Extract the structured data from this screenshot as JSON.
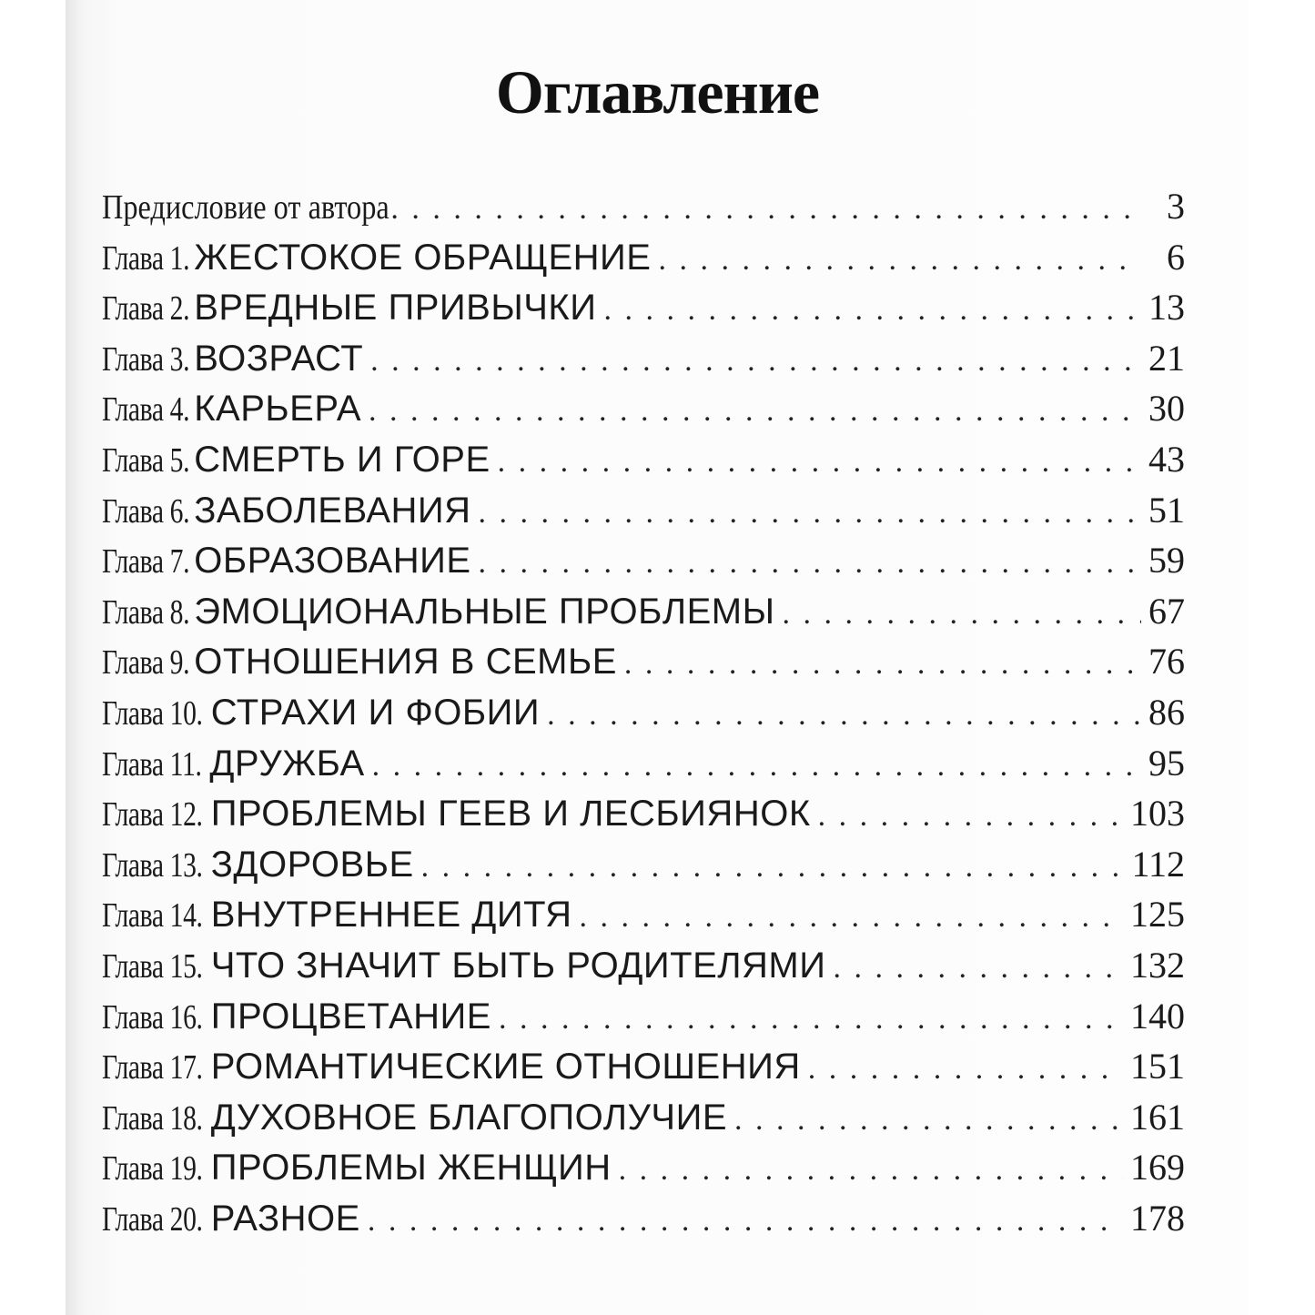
{
  "title": "Оглавление",
  "entries": [
    {
      "prefix": "Предисловие от автора",
      "name": "",
      "page": "3"
    },
    {
      "prefix": "Глава 1.",
      "name": "ЖЕСТОКОЕ ОБРАЩЕНИЕ",
      "page": "6"
    },
    {
      "prefix": "Глава 2.",
      "name": "ВРЕДНЫЕ ПРИВЫЧКИ",
      "page": "13"
    },
    {
      "prefix": "Глава 3.",
      "name": "ВОЗРАСТ",
      "page": "21"
    },
    {
      "prefix": "Глава 4.",
      "name": "КАРЬЕРА",
      "page": "30"
    },
    {
      "prefix": "Глава 5.",
      "name": "СМЕРТЬ И ГОРЕ",
      "page": "43"
    },
    {
      "prefix": "Глава 6.",
      "name": "ЗАБОЛЕВАНИЯ",
      "page": "51"
    },
    {
      "prefix": "Глава 7.",
      "name": "ОБРАЗОВАНИЕ",
      "page": "59"
    },
    {
      "prefix": "Глава 8.",
      "name": "ЭМОЦИОНАЛЬНЫЕ ПРОБЛЕМЫ",
      "page": "67"
    },
    {
      "prefix": "Глава 9.",
      "name": "ОТНОШЕНИЯ В СЕМЬЕ",
      "page": "76"
    },
    {
      "prefix": "Глава 10.",
      "name": "СТРАХИ И ФОБИИ",
      "page": "86"
    },
    {
      "prefix": "Глава 11.",
      "name": "ДРУЖБА",
      "page": "95"
    },
    {
      "prefix": "Глава 12.",
      "name": "ПРОБЛЕМЫ ГЕЕВ И ЛЕСБИЯНОК",
      "page": "103"
    },
    {
      "prefix": "Глава 13.",
      "name": "ЗДОРОВЬЕ",
      "page": "112"
    },
    {
      "prefix": "Глава 14.",
      "name": "ВНУТРЕННЕЕ ДИТЯ",
      "page": "125"
    },
    {
      "prefix": "Глава 15.",
      "name": "ЧТО ЗНАЧИТ БЫТЬ РОДИТЕЛЯМИ",
      "page": "132"
    },
    {
      "prefix": "Глава 16.",
      "name": "ПРОЦВЕТАНИЕ",
      "page": "140"
    },
    {
      "prefix": "Глава 17.",
      "name": "РОМАНТИЧЕСКИЕ ОТНОШЕНИЯ",
      "page": "151"
    },
    {
      "prefix": "Глава 18.",
      "name": "ДУХОВНОЕ БЛАГОПОЛУЧИЕ",
      "page": "161"
    },
    {
      "prefix": "Глава 19.",
      "name": "ПРОБЛЕМЫ ЖЕНЩИН",
      "page": "169"
    },
    {
      "prefix": "Глава 20.",
      "name": "РАЗНОЕ",
      "page": "178"
    }
  ]
}
